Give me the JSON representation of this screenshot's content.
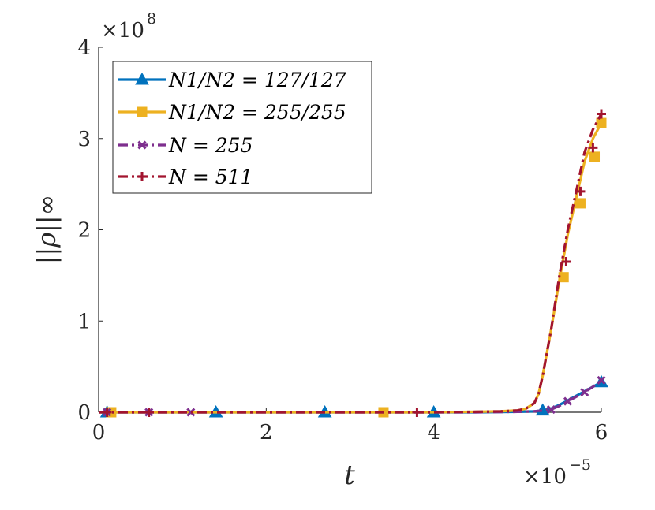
{
  "chart_data": {
    "type": "line",
    "xlabel": "t",
    "ylabel": "||ρ||∞",
    "x_multiplier": "×10",
    "x_exponent": "−5",
    "y_multiplier": "×10",
    "y_exponent": "8",
    "xlim": [
      0,
      6
    ],
    "ylim": [
      0,
      4
    ],
    "xticks": [
      0,
      2,
      4,
      6
    ],
    "yticks": [
      0,
      1,
      2,
      3,
      4
    ],
    "grid": false,
    "legend_position": "top-left",
    "series": [
      {
        "name": "N1/N2 = 127/127",
        "color": "#0072BD",
        "line_style": "solid",
        "marker": "triangle",
        "x": [
          0.0,
          0.5,
          1.0,
          1.5,
          2.0,
          2.5,
          3.0,
          3.5,
          4.0,
          4.5,
          5.0,
          5.2,
          5.3,
          5.4,
          5.5,
          5.6,
          5.7,
          5.8,
          5.9,
          6.0
        ],
        "y": [
          0,
          0,
          0,
          0,
          0,
          0,
          0,
          0,
          0,
          0,
          0.005,
          0.01,
          0.02,
          0.04,
          0.08,
          0.13,
          0.18,
          0.23,
          0.28,
          0.33
        ],
        "markers_x": [
          0.1,
          1.4,
          2.7,
          4.0,
          5.3,
          6.0
        ],
        "markers_y": [
          0,
          0,
          0,
          0,
          0.02,
          0.33
        ]
      },
      {
        "name": "N1/N2 = 255/255",
        "color": "#EDB120",
        "line_style": "solid",
        "marker": "square",
        "x": [
          0.0,
          1.0,
          2.0,
          3.0,
          4.0,
          4.5,
          4.8,
          5.0,
          5.1,
          5.2,
          5.25,
          5.3,
          5.35,
          5.4,
          5.5,
          5.6,
          5.7,
          5.8,
          5.9,
          6.0
        ],
        "y": [
          0,
          0,
          0,
          0,
          0,
          0.005,
          0.01,
          0.02,
          0.04,
          0.1,
          0.2,
          0.4,
          0.65,
          0.9,
          1.45,
          1.95,
          2.35,
          2.75,
          3.0,
          3.17
        ],
        "markers_x": [
          0.15,
          3.4,
          5.55,
          5.75,
          5.92,
          6.0
        ],
        "markers_y": [
          0,
          0,
          1.48,
          2.29,
          2.8,
          3.17
        ]
      },
      {
        "name": "N = 255",
        "color": "#7E2F8E",
        "line_style": "dashdot",
        "marker": "x",
        "x": [
          0.0,
          1.0,
          2.0,
          3.0,
          4.0,
          4.5,
          5.0,
          5.2,
          5.3,
          5.4,
          5.5,
          5.6,
          5.7,
          5.8,
          5.9,
          6.0
        ],
        "y": [
          0,
          0,
          0,
          0,
          0,
          0,
          0.005,
          0.01,
          0.02,
          0.03,
          0.07,
          0.12,
          0.17,
          0.22,
          0.28,
          0.35
        ],
        "markers_x": [
          0.1,
          0.6,
          1.1,
          5.4,
          5.6,
          5.8,
          6.0
        ],
        "markers_y": [
          0,
          0,
          0,
          0.03,
          0.12,
          0.22,
          0.35
        ]
      },
      {
        "name": "N = 511",
        "color": "#A2142F",
        "line_style": "dashdot",
        "marker": "plus",
        "x": [
          0.0,
          1.0,
          2.0,
          3.0,
          4.0,
          4.5,
          4.8,
          5.0,
          5.1,
          5.2,
          5.25,
          5.3,
          5.35,
          5.4,
          5.5,
          5.6,
          5.7,
          5.8,
          5.9,
          6.0
        ],
        "y": [
          0,
          0,
          0,
          0,
          0,
          0.005,
          0.01,
          0.02,
          0.04,
          0.1,
          0.2,
          0.4,
          0.65,
          0.9,
          1.5,
          2.0,
          2.42,
          2.85,
          3.1,
          3.27
        ],
        "markers_x": [
          0.1,
          0.6,
          3.8,
          5.58,
          5.75,
          5.9,
          6.0
        ],
        "markers_y": [
          0,
          0,
          0,
          1.65,
          2.42,
          2.9,
          3.27
        ]
      }
    ]
  }
}
